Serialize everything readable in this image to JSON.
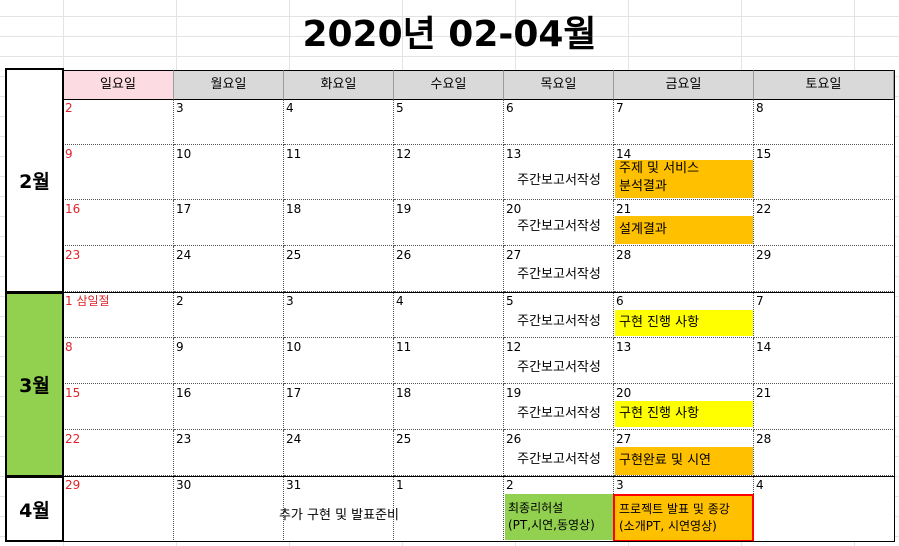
{
  "title": "2020년 02-04월",
  "weekdays": [
    "일요일",
    "월요일",
    "화요일",
    "수요일",
    "목요일",
    "금요일",
    "토요일"
  ],
  "months": {
    "feb": "2월",
    "mar": "3월",
    "apr": "4월"
  },
  "weeks": [
    [
      "2",
      "3",
      "4",
      "5",
      "6",
      "7",
      "8"
    ],
    [
      "9",
      "10",
      "11",
      "12",
      "13",
      "14",
      "15"
    ],
    [
      "16",
      "17",
      "18",
      "19",
      "20",
      "21",
      "22"
    ],
    [
      "23",
      "24",
      "25",
      "26",
      "27",
      "28",
      "29"
    ],
    [
      "1 삼일절",
      "2",
      "3",
      "4",
      "5",
      "6",
      "7"
    ],
    [
      "8",
      "9",
      "10",
      "11",
      "12",
      "13",
      "14"
    ],
    [
      "15",
      "16",
      "17",
      "18",
      "19",
      "20",
      "21"
    ],
    [
      "22",
      "23",
      "24",
      "25",
      "26",
      "27",
      "28"
    ],
    [
      "29",
      "30",
      "31",
      "1",
      "2",
      "3",
      "4"
    ]
  ],
  "events": {
    "weekly_report": "주간보고서작성",
    "w2_fri_line1": "주제 및 서비스",
    "w2_fri_line2": "분석결과",
    "w3_fri": "설계결과",
    "w5_fri": "구현 진행 사항",
    "w7_fri": "구현 진행 사항",
    "w8_fri": "구현완료 및 시연",
    "w9_span": "추가 구현 및 발표준비",
    "w9_thu_line1": "최종리허설",
    "w9_thu_line2": "(PT,시연,동영상)",
    "w9_fri_line1": "프로젝트 발표 및 종강",
    "w9_fri_line2": "(소개PT, 시연영상)"
  },
  "colors": {
    "sunday_header": "#fcdbe2",
    "header": "#d9d9d9",
    "march_label": "#92d050",
    "orange_event": "#ffc000",
    "yellow_event": "#ffff00",
    "green_event": "#92d050",
    "highlight_border": "#ff0000",
    "sunday_text": "#e0242b"
  }
}
